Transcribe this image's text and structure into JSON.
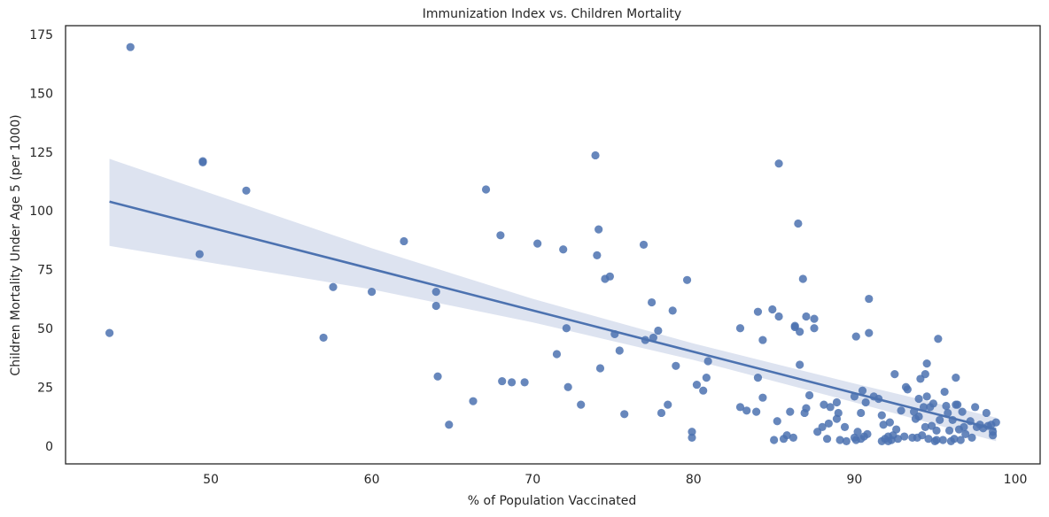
{
  "chart_data": {
    "type": "scatter",
    "title": "Immunization Index vs. Children Mortality",
    "x_label": "% of Population Vaccinated",
    "y_label": "Children Mortality Under Age 5 (per 1000)",
    "xlim": [
      40.97,
      101.54
    ],
    "ylim": [
      -7.15,
      179.1
    ],
    "xticks": [
      50,
      60,
      70,
      80,
      90,
      100
    ],
    "yticks": [
      0,
      25,
      50,
      75,
      100,
      125,
      150,
      175
    ],
    "grid": false,
    "color": "#4c72b0",
    "band_color": "#dde3f0",
    "x": [
      43.7,
      45,
      49.5,
      49.5,
      49.3,
      52.2,
      57.6,
      57,
      60,
      62,
      64,
      64,
      64.1,
      64.8,
      66.3,
      67.1,
      68,
      68.1,
      68.7,
      69.5,
      70.3,
      71.5,
      71.9,
      72.1,
      72.2,
      73,
      73.9,
      74,
      74.1,
      74.2,
      74.5,
      74.8,
      75.1,
      75.4,
      75.7,
      76.9,
      77,
      77.4,
      77.5,
      77.8,
      78,
      78.4,
      78.7,
      78.9,
      79.6,
      79.9,
      79.9,
      80.2,
      80.6,
      80.8,
      80.9,
      82.9,
      82.9,
      83.3,
      83.9,
      84,
      84,
      84.3,
      84.3,
      84.9,
      85,
      85.2,
      85.3,
      85.3,
      85.6,
      85.8,
      86,
      86.2,
      86.3,
      86.3,
      86.5,
      86.6,
      86.6,
      86.8,
      86.9,
      87,
      87,
      87.2,
      87.5,
      87.5,
      87.7,
      88,
      88.1,
      88.3,
      88.4,
      88.5,
      88.9,
      88.9,
      89,
      89.1,
      89.4,
      89.5,
      90,
      90,
      90.1,
      90.1,
      90.2,
      90.4,
      90.4,
      90.5,
      90.6,
      90.7,
      90.8,
      90.9,
      90.9,
      91.2,
      91.5,
      91.7,
      91.7,
      91.8,
      91.9,
      92.1,
      92.1,
      92.2,
      92.3,
      92.4,
      92.5,
      92.6,
      92.7,
      92.9,
      93.1,
      93.2,
      93.3,
      93.6,
      93.7,
      93.8,
      93.9,
      94,
      94,
      94.1,
      94.2,
      94.3,
      94.4,
      94.4,
      94.5,
      94.5,
      94.6,
      94.7,
      94.8,
      94.9,
      95,
      95.1,
      95.1,
      95.2,
      95.3,
      95.5,
      95.6,
      95.7,
      95.8,
      95.9,
      96,
      96.1,
      96.2,
      96.3,
      96.3,
      96.4,
      96.5,
      96.6,
      96.7,
      96.8,
      96.9,
      97.2,
      97.3,
      97.5,
      97.6,
      97.8,
      98,
      98.2,
      98.3,
      98.6,
      98.6,
      98.8,
      98.5
    ],
    "y": [
      48.5,
      170,
      121.5,
      121,
      82,
      109,
      68,
      46.5,
      66,
      87.5,
      66,
      60,
      30,
      9.5,
      19.5,
      109.5,
      90,
      28,
      27.5,
      27.5,
      86.5,
      39.5,
      84,
      50.5,
      25.5,
      18,
      124,
      81.5,
      92.5,
      33.5,
      71.5,
      72.5,
      48,
      41,
      14,
      86,
      45.5,
      61.5,
      46.5,
      49.5,
      14.5,
      18,
      58,
      34.5,
      71,
      6.5,
      4,
      26.5,
      24,
      29.5,
      36.5,
      50.5,
      17,
      15.5,
      15,
      57.5,
      29.5,
      45.5,
      21,
      58.5,
      3,
      11,
      120.5,
      55.5,
      3.5,
      5,
      15,
      4,
      51.5,
      51,
      95,
      49,
      35,
      71.5,
      14.5,
      16.5,
      55.5,
      22,
      54.5,
      50.5,
      6.5,
      8.5,
      18,
      3.5,
      10,
      17,
      12,
      19,
      14.5,
      3,
      8.5,
      2.5,
      21.5,
      4,
      47,
      3,
      6.5,
      14.5,
      3.5,
      24,
      4.5,
      19,
      5.5,
      48.5,
      63,
      21.5,
      20.5,
      13.5,
      2.5,
      9.5,
      3.5,
      4.5,
      2.5,
      10.5,
      3,
      5,
      31,
      7.5,
      3.5,
      15.5,
      4.5,
      25.5,
      24.5,
      4,
      15,
      12,
      4,
      20.5,
      13,
      29,
      5,
      17,
      8.5,
      31,
      35.5,
      21.5,
      3.5,
      17,
      9,
      18.5,
      2.5,
      3,
      7,
      46,
      11.5,
      3,
      23.5,
      17.5,
      14.5,
      7,
      2.5,
      11.5,
      3.5,
      29.5,
      18,
      18,
      7.5,
      3,
      15,
      8.5,
      5.5,
      11,
      4,
      17,
      8.5,
      9.5,
      8,
      14.5,
      9,
      5,
      6.5,
      10.5,
      9.5
    ],
    "fit": {
      "x": [
        43.7,
        60,
        70,
        80,
        90,
        98.8
      ],
      "y": [
        104.3,
        75.7,
        58.1,
        40.5,
        22.9,
        7.5
      ],
      "upper": [
        122.5,
        84.5,
        63,
        44,
        27,
        12.5
      ],
      "lower": [
        85.5,
        67,
        53,
        37,
        19,
        2.5
      ]
    }
  }
}
